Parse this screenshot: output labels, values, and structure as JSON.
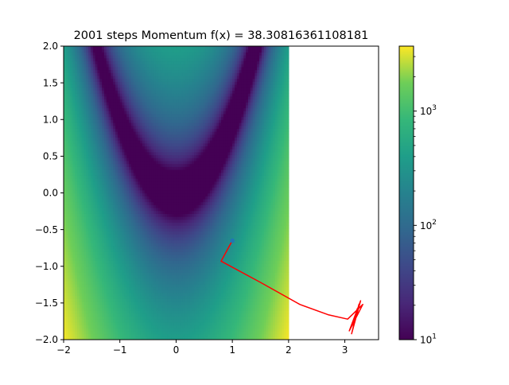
{
  "chart_data": {
    "type": "heatmap",
    "title": "2001 steps  Momentum f(x) = 38.30816361108181",
    "xlabel": "",
    "ylabel": "",
    "xlim": [
      -2,
      3.6
    ],
    "ylim": [
      -2,
      2
    ],
    "heatmap_x_range": [
      -2,
      2
    ],
    "heatmap_y_range": [
      -2,
      2
    ],
    "color_scale": "log",
    "colormap": "viridis",
    "color_range": [
      10,
      3700
    ],
    "x_ticks": [
      -2,
      -1,
      0,
      1,
      2,
      3
    ],
    "x_tick_labels": [
      "−2",
      "−1",
      "0",
      "1",
      "2",
      "3"
    ],
    "y_ticks": [
      -2.0,
      -1.5,
      -1.0,
      -0.5,
      0.0,
      0.5,
      1.0,
      1.5,
      2.0
    ],
    "y_tick_labels": [
      "−2.0",
      "−1.5",
      "−1.0",
      "−0.5",
      "0.0",
      "0.5",
      "1.0",
      "1.5",
      "2.0"
    ],
    "colorbar_ticks": [
      10,
      100,
      1000
    ],
    "colorbar_tick_labels": [
      "10",
      "10",
      "10"
    ],
    "colorbar_tick_exponents": [
      "1",
      "2",
      "3"
    ],
    "start_point": {
      "x": 1.0,
      "y": -0.65,
      "color": "#1f77b4"
    },
    "series": [
      {
        "color": "#ff0000",
        "path": [
          [
            1.0,
            -0.65
          ],
          [
            0.8,
            -0.93
          ],
          [
            1.5,
            -1.22
          ],
          [
            2.2,
            -1.52
          ],
          [
            2.7,
            -1.66
          ],
          [
            3.05,
            -1.72
          ],
          [
            3.32,
            -1.52
          ],
          [
            3.08,
            -1.88
          ],
          [
            3.28,
            -1.47
          ],
          [
            3.12,
            -1.92
          ],
          [
            3.25,
            -1.52
          ],
          [
            3.15,
            -1.82
          ],
          [
            3.22,
            -1.58
          ],
          [
            3.18,
            -1.7
          ]
        ]
      }
    ]
  }
}
